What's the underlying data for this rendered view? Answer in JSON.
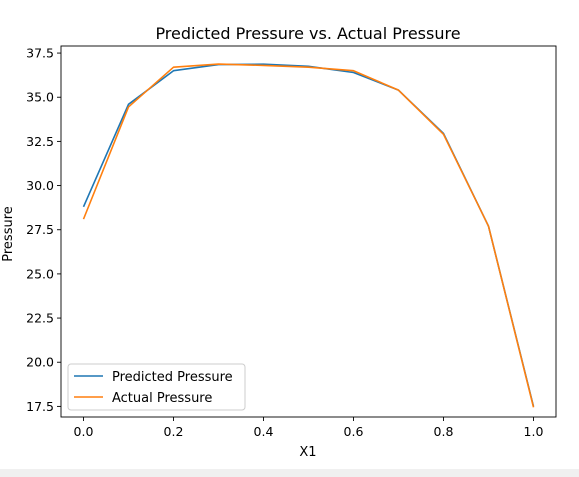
{
  "chart_data": {
    "type": "line",
    "title": "Predicted Pressure vs. Actual Pressure",
    "xlabel": "X1",
    "ylabel": "Pressure",
    "xlim": [
      -0.05,
      1.05
    ],
    "ylim": [
      16.9,
      37.9
    ],
    "x_ticks": [
      "0.0",
      "0.2",
      "0.4",
      "0.6",
      "0.8",
      "1.0"
    ],
    "x_tick_values": [
      0.0,
      0.2,
      0.4,
      0.6,
      0.8,
      1.0
    ],
    "y_ticks": [
      "17.5",
      "20.0",
      "22.5",
      "25.0",
      "27.5",
      "30.0",
      "32.5",
      "35.0",
      "37.5"
    ],
    "y_tick_values": [
      17.5,
      20.0,
      22.5,
      25.0,
      27.5,
      30.0,
      32.5,
      35.0,
      37.5
    ],
    "grid": false,
    "legend_position": "lower-left",
    "x": [
      0.0,
      0.1,
      0.2,
      0.3,
      0.4,
      0.5,
      0.6,
      0.7,
      0.8,
      0.9,
      1.0
    ],
    "series": [
      {
        "name": "Predicted Pressure",
        "color": "#1f77b4",
        "values": [
          28.8,
          34.6,
          36.5,
          36.85,
          36.87,
          36.75,
          36.4,
          35.4,
          32.95,
          27.7,
          17.5
        ]
      },
      {
        "name": "Actual Pressure",
        "color": "#ff7f0e",
        "values": [
          28.1,
          34.45,
          36.7,
          36.88,
          36.8,
          36.7,
          36.5,
          35.4,
          32.9,
          27.7,
          17.45
        ]
      }
    ]
  }
}
